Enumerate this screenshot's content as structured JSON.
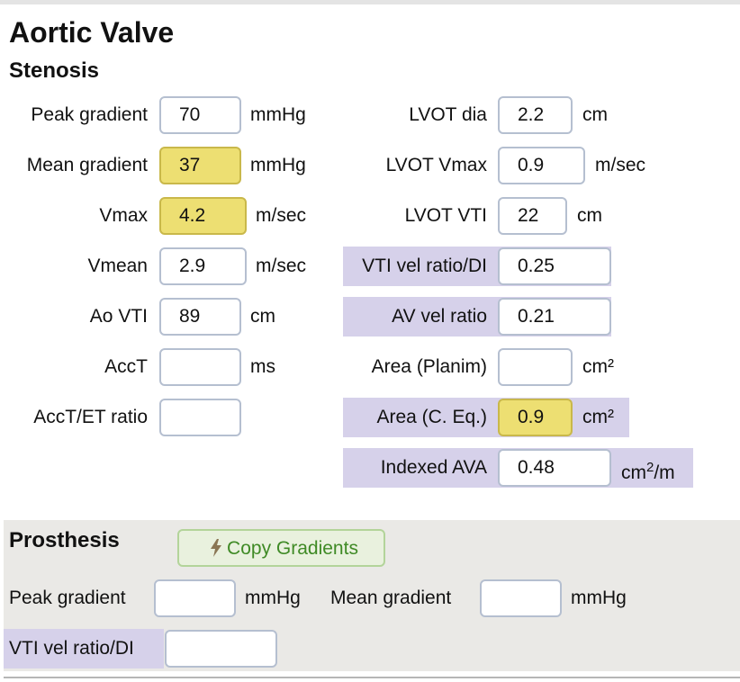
{
  "title": "Aortic Valve",
  "stenosis": {
    "heading": "Stenosis",
    "left": [
      {
        "label": "Peak gradient",
        "value": "70",
        "unit": "mmHg"
      },
      {
        "label": "Mean gradient",
        "value": "37",
        "unit": "mmHg"
      },
      {
        "label": "Vmax",
        "value": "4.2",
        "unit": "m/sec"
      },
      {
        "label": "Vmean",
        "value": "2.9",
        "unit": "m/sec"
      },
      {
        "label": "Ao VTI",
        "value": "89",
        "unit": "cm"
      },
      {
        "label": "AccT",
        "value": "",
        "unit": "ms"
      },
      {
        "label": "AccT/ET ratio",
        "value": "",
        "unit": ""
      }
    ],
    "right": [
      {
        "label": "LVOT dia",
        "value": "2.2",
        "unit": "cm"
      },
      {
        "label": "LVOT Vmax",
        "value": "0.9",
        "unit": "m/sec"
      },
      {
        "label": "LVOT VTI",
        "value": "22",
        "unit": "cm"
      },
      {
        "label": "VTI vel ratio/DI",
        "value": "0.25",
        "unit": ""
      },
      {
        "label": "AV vel ratio",
        "value": "0.21",
        "unit": ""
      },
      {
        "label": "Area (Planim)",
        "value": "",
        "unit": "cm²"
      },
      {
        "label": "Area (C. Eq.)",
        "value": "0.9",
        "unit": "cm²"
      },
      {
        "label": "Indexed AVA",
        "value": "0.48",
        "unit_base": "cm",
        "unit_sup": "2",
        "unit_tail": "/m"
      }
    ]
  },
  "prosthesis": {
    "heading": "Prosthesis",
    "copy_button": "Copy Gradients",
    "peak_gradient": {
      "label": "Peak gradient",
      "value": "",
      "unit": "mmHg"
    },
    "mean_gradient": {
      "label": "Mean gradient",
      "value": "",
      "unit": "mmHg"
    },
    "vti_ratio": {
      "label": "VTI vel ratio/DI",
      "value": ""
    }
  },
  "colors": {
    "highlight_yellow": "#eddf72",
    "computed_purple": "#d6d1ea",
    "button_green": "#3f8a25"
  },
  "icons": {
    "copy_button_icon": "lightning-bolt-icon"
  }
}
